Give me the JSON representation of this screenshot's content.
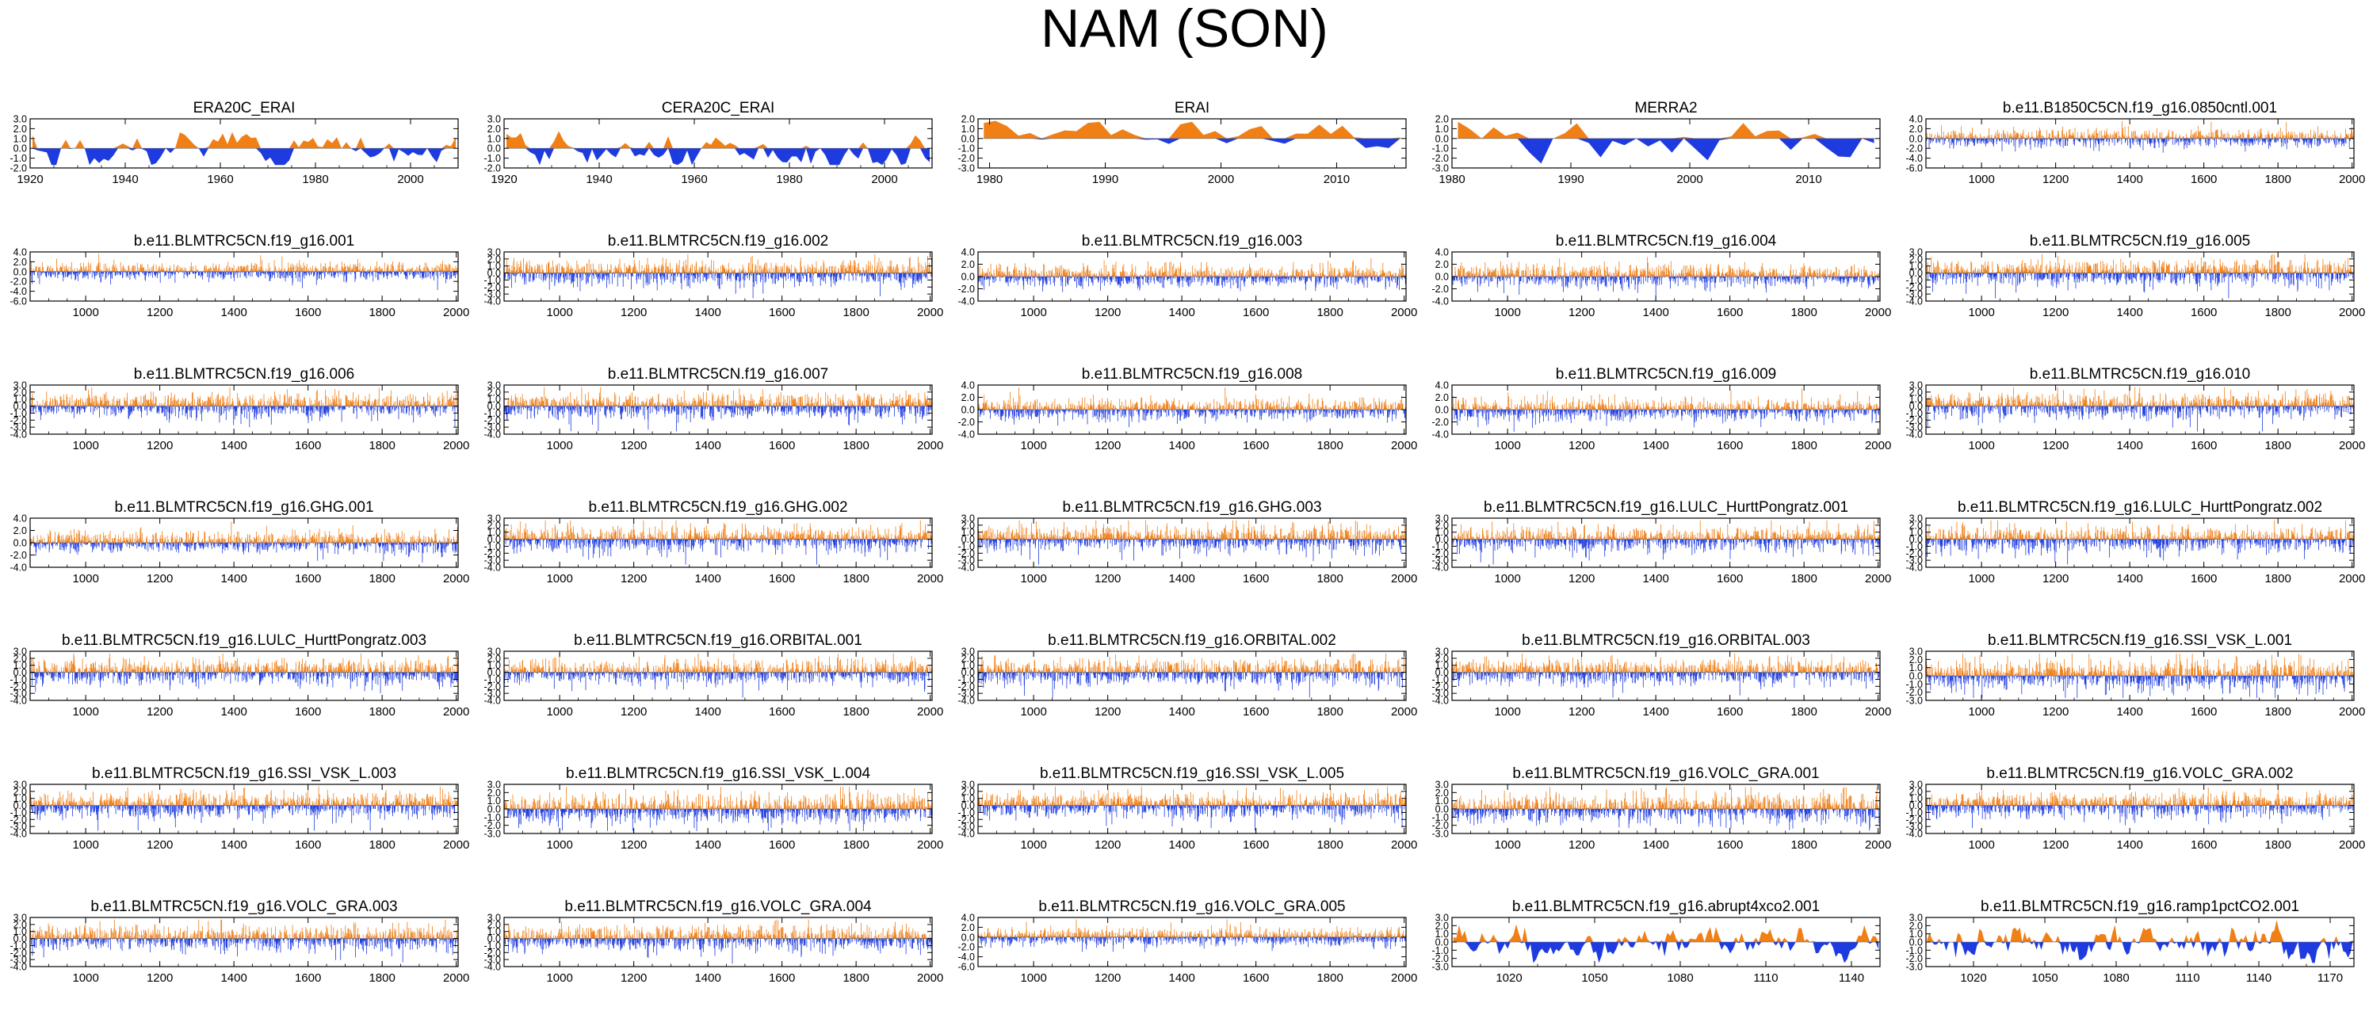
{
  "title": "NAM (SON)",
  "colors": {
    "positive": "#f07f16",
    "negative": "#1e3be0",
    "axis": "#000000"
  },
  "chart_data": [
    {
      "type": "area",
      "title": "ERA20C_ERAI",
      "xlim": [
        1920,
        2010
      ],
      "ylim": [
        -2.0,
        3.0
      ],
      "xticks": [
        "1920",
        "1940",
        "1960",
        "1980",
        "2000"
      ],
      "yticks": [
        "3.0",
        "2.0",
        "1.0",
        "0.0",
        "-1.0",
        "-2.0"
      ],
      "style": "smooth",
      "n": 90,
      "seed": 3
    },
    {
      "type": "area",
      "title": "CERA20C_ERAI",
      "xlim": [
        1920,
        2010
      ],
      "ylim": [
        -2.0,
        3.0
      ],
      "xticks": [
        "1920",
        "1940",
        "1960",
        "1980",
        "2000"
      ],
      "yticks": [
        "3.0",
        "2.0",
        "1.0",
        "0.0",
        "-1.0",
        "-2.0"
      ],
      "style": "smooth",
      "n": 90,
      "seed": 5
    },
    {
      "type": "area",
      "title": "ERAI",
      "xlim": [
        1979,
        2016
      ],
      "ylim": [
        -3.0,
        2.0
      ],
      "xticks": [
        "1980",
        "1990",
        "2000",
        "2010"
      ],
      "yticks": [
        "2.0",
        "1.0",
        "0.0",
        "-1.0",
        "-2.0",
        "-3.0"
      ],
      "style": "smooth",
      "n": 37,
      "seed": 7
    },
    {
      "type": "area",
      "title": "MERRA2",
      "xlim": [
        1980,
        2016
      ],
      "ylim": [
        -3.0,
        2.0
      ],
      "xticks": [
        "1980",
        "1990",
        "2000",
        "2010"
      ],
      "yticks": [
        "2.0",
        "1.0",
        "0.0",
        "-1.0",
        "-2.0",
        "-3.0"
      ],
      "style": "smooth",
      "n": 36,
      "seed": 9
    },
    {
      "type": "area",
      "title": "b.e11.B1850C5CN.f19_g16.0850cntl.001",
      "xlim": [
        850,
        2005
      ],
      "ylim": [
        -6.0,
        4.0
      ],
      "xticks": [
        "1000",
        "1200",
        "1400",
        "1600",
        "1800",
        "2000"
      ],
      "yticks": [
        "4.0",
        "2.0",
        "0.0",
        "-2.0",
        "-4.0",
        "-6.0"
      ],
      "style": "spiky",
      "n": 1156,
      "seed": 11
    },
    {
      "type": "area",
      "title": "b.e11.BLMTRC5CN.f19_g16.001",
      "xlim": [
        850,
        2005
      ],
      "ylim": [
        -6.0,
        4.0
      ],
      "xticks": [
        "1000",
        "1200",
        "1400",
        "1600",
        "1800",
        "2000"
      ],
      "yticks": [
        "4.0",
        "2.0",
        "0.0",
        "-2.0",
        "-4.0",
        "-6.0"
      ],
      "style": "spiky",
      "n": 1156,
      "seed": 13
    },
    {
      "type": "area",
      "title": "b.e11.BLMTRC5CN.f19_g16.002",
      "xlim": [
        850,
        2005
      ],
      "ylim": [
        -4.0,
        3.0
      ],
      "xticks": [
        "1000",
        "1200",
        "1400",
        "1600",
        "1800",
        "2000"
      ],
      "yticks": [
        "3.0",
        "2.0",
        "1.0",
        "0.0",
        "-1.0",
        "-2.0",
        "-3.0",
        "-4.0"
      ],
      "style": "spiky",
      "n": 1156,
      "seed": 15
    },
    {
      "type": "area",
      "title": "b.e11.BLMTRC5CN.f19_g16.003",
      "xlim": [
        850,
        2005
      ],
      "ylim": [
        -4.0,
        4.0
      ],
      "xticks": [
        "1000",
        "1200",
        "1400",
        "1600",
        "1800",
        "2000"
      ],
      "yticks": [
        "4.0",
        "2.0",
        "0.0",
        "-2.0",
        "-4.0"
      ],
      "style": "spiky",
      "n": 1156,
      "seed": 17
    },
    {
      "type": "area",
      "title": "b.e11.BLMTRC5CN.f19_g16.004",
      "xlim": [
        850,
        2005
      ],
      "ylim": [
        -4.0,
        4.0
      ],
      "xticks": [
        "1000",
        "1200",
        "1400",
        "1600",
        "1800",
        "2000"
      ],
      "yticks": [
        "4.0",
        "2.0",
        "0.0",
        "-2.0",
        "-4.0"
      ],
      "style": "spiky",
      "n": 1156,
      "seed": 19
    },
    {
      "type": "area",
      "title": "b.e11.BLMTRC5CN.f19_g16.005",
      "xlim": [
        850,
        2005
      ],
      "ylim": [
        -4.0,
        3.0
      ],
      "xticks": [
        "1000",
        "1200",
        "1400",
        "1600",
        "1800",
        "2000"
      ],
      "yticks": [
        "3.0",
        "2.0",
        "1.0",
        "0.0",
        "-1.0",
        "-2.0",
        "-3.0",
        "-4.0"
      ],
      "style": "spiky",
      "n": 1156,
      "seed": 21
    },
    {
      "type": "area",
      "title": "b.e11.BLMTRC5CN.f19_g16.006",
      "xlim": [
        850,
        2005
      ],
      "ylim": [
        -4.0,
        3.0
      ],
      "xticks": [
        "1000",
        "1200",
        "1400",
        "1600",
        "1800",
        "2000"
      ],
      "yticks": [
        "3.0",
        "2.0",
        "1.0",
        "0.0",
        "-1.0",
        "-2.0",
        "-3.0",
        "-4.0"
      ],
      "style": "spiky",
      "n": 1156,
      "seed": 23
    },
    {
      "type": "area",
      "title": "b.e11.BLMTRC5CN.f19_g16.007",
      "xlim": [
        850,
        2005
      ],
      "ylim": [
        -4.0,
        3.0
      ],
      "xticks": [
        "1000",
        "1200",
        "1400",
        "1600",
        "1800",
        "2000"
      ],
      "yticks": [
        "3.0",
        "2.0",
        "1.0",
        "0.0",
        "-1.0",
        "-2.0",
        "-3.0",
        "-4.0"
      ],
      "style": "spiky",
      "n": 1156,
      "seed": 25
    },
    {
      "type": "area",
      "title": "b.e11.BLMTRC5CN.f19_g16.008",
      "xlim": [
        850,
        2005
      ],
      "ylim": [
        -4.0,
        4.0
      ],
      "xticks": [
        "1000",
        "1200",
        "1400",
        "1600",
        "1800",
        "2000"
      ],
      "yticks": [
        "4.0",
        "2.0",
        "0.0",
        "-2.0",
        "-4.0"
      ],
      "style": "spiky",
      "n": 1156,
      "seed": 27
    },
    {
      "type": "area",
      "title": "b.e11.BLMTRC5CN.f19_g16.009",
      "xlim": [
        850,
        2005
      ],
      "ylim": [
        -4.0,
        4.0
      ],
      "xticks": [
        "1000",
        "1200",
        "1400",
        "1600",
        "1800",
        "2000"
      ],
      "yticks": [
        "4.0",
        "2.0",
        "0.0",
        "-2.0",
        "-4.0"
      ],
      "style": "spiky",
      "n": 1156,
      "seed": 29
    },
    {
      "type": "area",
      "title": "b.e11.BLMTRC5CN.f19_g16.010",
      "xlim": [
        850,
        2005
      ],
      "ylim": [
        -4.0,
        3.0
      ],
      "xticks": [
        "1000",
        "1200",
        "1400",
        "1600",
        "1800",
        "2000"
      ],
      "yticks": [
        "3.0",
        "2.0",
        "1.0",
        "0.0",
        "-1.0",
        "-2.0",
        "-3.0",
        "-4.0"
      ],
      "style": "spiky",
      "n": 1156,
      "seed": 31
    },
    {
      "type": "area",
      "title": "b.e11.BLMTRC5CN.f19_g16.GHG.001",
      "xlim": [
        850,
        2005
      ],
      "ylim": [
        -4.0,
        4.0
      ],
      "xticks": [
        "1000",
        "1200",
        "1400",
        "1600",
        "1800",
        "2000"
      ],
      "yticks": [
        "4.0",
        "2.0",
        "0.0",
        "-2.0",
        "-4.0"
      ],
      "style": "spiky",
      "n": 1156,
      "seed": 33
    },
    {
      "type": "area",
      "title": "b.e11.BLMTRC5CN.f19_g16.GHG.002",
      "xlim": [
        850,
        2005
      ],
      "ylim": [
        -4.0,
        3.0
      ],
      "xticks": [
        "1000",
        "1200",
        "1400",
        "1600",
        "1800",
        "2000"
      ],
      "yticks": [
        "3.0",
        "2.0",
        "1.0",
        "0.0",
        "-1.0",
        "-2.0",
        "-3.0",
        "-4.0"
      ],
      "style": "spiky",
      "n": 1156,
      "seed": 35
    },
    {
      "type": "area",
      "title": "b.e11.BLMTRC5CN.f19_g16.GHG.003",
      "xlim": [
        850,
        2005
      ],
      "ylim": [
        -4.0,
        3.0
      ],
      "xticks": [
        "1000",
        "1200",
        "1400",
        "1600",
        "1800",
        "2000"
      ],
      "yticks": [
        "3.0",
        "2.0",
        "1.0",
        "0.0",
        "-1.0",
        "-2.0",
        "-3.0",
        "-4.0"
      ],
      "style": "spiky",
      "n": 1156,
      "seed": 37
    },
    {
      "type": "area",
      "title": "b.e11.BLMTRC5CN.f19_g16.LULC_HurttPongratz.001",
      "xlim": [
        850,
        2005
      ],
      "ylim": [
        -4.0,
        3.0
      ],
      "xticks": [
        "1000",
        "1200",
        "1400",
        "1600",
        "1800",
        "2000"
      ],
      "yticks": [
        "3.0",
        "2.0",
        "1.0",
        "0.0",
        "-1.0",
        "-2.0",
        "-3.0",
        "-4.0"
      ],
      "style": "spiky",
      "n": 1156,
      "seed": 39
    },
    {
      "type": "area",
      "title": "b.e11.BLMTRC5CN.f19_g16.LULC_HurttPongratz.002",
      "xlim": [
        850,
        2005
      ],
      "ylim": [
        -4.0,
        3.0
      ],
      "xticks": [
        "1000",
        "1200",
        "1400",
        "1600",
        "1800",
        "2000"
      ],
      "yticks": [
        "3.0",
        "2.0",
        "1.0",
        "0.0",
        "-1.0",
        "-2.0",
        "-3.0",
        "-4.0"
      ],
      "style": "spiky",
      "n": 1156,
      "seed": 41
    },
    {
      "type": "area",
      "title": "b.e11.BLMTRC5CN.f19_g16.LULC_HurttPongratz.003",
      "xlim": [
        850,
        2005
      ],
      "ylim": [
        -4.0,
        3.0
      ],
      "xticks": [
        "1000",
        "1200",
        "1400",
        "1600",
        "1800",
        "2000"
      ],
      "yticks": [
        "3.0",
        "2.0",
        "1.0",
        "0.0",
        "-1.0",
        "-2.0",
        "-3.0",
        "-4.0"
      ],
      "style": "spiky",
      "n": 1156,
      "seed": 43
    },
    {
      "type": "area",
      "title": "b.e11.BLMTRC5CN.f19_g16.ORBITAL.001",
      "xlim": [
        850,
        2005
      ],
      "ylim": [
        -4.0,
        3.0
      ],
      "xticks": [
        "1000",
        "1200",
        "1400",
        "1600",
        "1800",
        "2000"
      ],
      "yticks": [
        "3.0",
        "2.0",
        "1.0",
        "0.0",
        "-1.0",
        "-2.0",
        "-3.0",
        "-4.0"
      ],
      "style": "spiky",
      "n": 1156,
      "seed": 45
    },
    {
      "type": "area",
      "title": "b.e11.BLMTRC5CN.f19_g16.ORBITAL.002",
      "xlim": [
        850,
        2005
      ],
      "ylim": [
        -4.0,
        3.0
      ],
      "xticks": [
        "1000",
        "1200",
        "1400",
        "1600",
        "1800",
        "2000"
      ],
      "yticks": [
        "3.0",
        "2.0",
        "1.0",
        "0.0",
        "-1.0",
        "-2.0",
        "-3.0",
        "-4.0"
      ],
      "style": "spiky",
      "n": 1156,
      "seed": 47
    },
    {
      "type": "area",
      "title": "b.e11.BLMTRC5CN.f19_g16.ORBITAL.003",
      "xlim": [
        850,
        2005
      ],
      "ylim": [
        -4.0,
        3.0
      ],
      "xticks": [
        "1000",
        "1200",
        "1400",
        "1600",
        "1800",
        "2000"
      ],
      "yticks": [
        "3.0",
        "2.0",
        "1.0",
        "0.0",
        "-1.0",
        "-2.0",
        "-3.0",
        "-4.0"
      ],
      "style": "spiky",
      "n": 1156,
      "seed": 49
    },
    {
      "type": "area",
      "title": "b.e11.BLMTRC5CN.f19_g16.SSI_VSK_L.001",
      "xlim": [
        850,
        2005
      ],
      "ylim": [
        -3.0,
        3.0
      ],
      "xticks": [
        "1000",
        "1200",
        "1400",
        "1600",
        "1800",
        "2000"
      ],
      "yticks": [
        "3.0",
        "2.0",
        "1.0",
        "0.0",
        "-1.0",
        "-2.0",
        "-3.0"
      ],
      "style": "spiky",
      "n": 1156,
      "seed": 51
    },
    {
      "type": "area",
      "title": "b.e11.BLMTRC5CN.f19_g16.SSI_VSK_L.003",
      "xlim": [
        850,
        2005
      ],
      "ylim": [
        -4.0,
        3.0
      ],
      "xticks": [
        "1000",
        "1200",
        "1400",
        "1600",
        "1800",
        "2000"
      ],
      "yticks": [
        "3.0",
        "2.0",
        "1.0",
        "0.0",
        "-1.0",
        "-2.0",
        "-3.0",
        "-4.0"
      ],
      "style": "spiky",
      "n": 1156,
      "seed": 53
    },
    {
      "type": "area",
      "title": "b.e11.BLMTRC5CN.f19_g16.SSI_VSK_L.004",
      "xlim": [
        850,
        2005
      ],
      "ylim": [
        -3.0,
        3.0
      ],
      "xticks": [
        "1000",
        "1200",
        "1400",
        "1600",
        "1800",
        "2000"
      ],
      "yticks": [
        "3.0",
        "2.0",
        "1.0",
        "0.0",
        "-1.0",
        "-2.0",
        "-3.0"
      ],
      "style": "spiky",
      "n": 1156,
      "seed": 55
    },
    {
      "type": "area",
      "title": "b.e11.BLMTRC5CN.f19_g16.SSI_VSK_L.005",
      "xlim": [
        850,
        2005
      ],
      "ylim": [
        -4.0,
        3.0
      ],
      "xticks": [
        "1000",
        "1200",
        "1400",
        "1600",
        "1800",
        "2000"
      ],
      "yticks": [
        "3.0",
        "2.0",
        "1.0",
        "0.0",
        "-1.0",
        "-2.0",
        "-3.0",
        "-4.0"
      ],
      "style": "spiky",
      "n": 1156,
      "seed": 57
    },
    {
      "type": "area",
      "title": "b.e11.BLMTRC5CN.f19_g16.VOLC_GRA.001",
      "xlim": [
        850,
        2005
      ],
      "ylim": [
        -3.0,
        3.0
      ],
      "xticks": [
        "1000",
        "1200",
        "1400",
        "1600",
        "1800",
        "2000"
      ],
      "yticks": [
        "3.0",
        "2.0",
        "1.0",
        "0.0",
        "-1.0",
        "-2.0",
        "-3.0"
      ],
      "style": "spiky",
      "n": 1156,
      "seed": 59
    },
    {
      "type": "area",
      "title": "b.e11.BLMTRC5CN.f19_g16.VOLC_GRA.002",
      "xlim": [
        850,
        2005
      ],
      "ylim": [
        -4.0,
        3.0
      ],
      "xticks": [
        "1000",
        "1200",
        "1400",
        "1600",
        "1800",
        "2000"
      ],
      "yticks": [
        "3.0",
        "2.0",
        "1.0",
        "0.0",
        "-1.0",
        "-2.0",
        "-3.0",
        "-4.0"
      ],
      "style": "spiky",
      "n": 1156,
      "seed": 61
    },
    {
      "type": "area",
      "title": "b.e11.BLMTRC5CN.f19_g16.VOLC_GRA.003",
      "xlim": [
        850,
        2005
      ],
      "ylim": [
        -4.0,
        3.0
      ],
      "xticks": [
        "1000",
        "1200",
        "1400",
        "1600",
        "1800",
        "2000"
      ],
      "yticks": [
        "3.0",
        "2.0",
        "1.0",
        "0.0",
        "-1.0",
        "-2.0",
        "-3.0",
        "-4.0"
      ],
      "style": "spiky",
      "n": 1156,
      "seed": 63
    },
    {
      "type": "area",
      "title": "b.e11.BLMTRC5CN.f19_g16.VOLC_GRA.004",
      "xlim": [
        850,
        2005
      ],
      "ylim": [
        -4.0,
        3.0
      ],
      "xticks": [
        "1000",
        "1200",
        "1400",
        "1600",
        "1800",
        "2000"
      ],
      "yticks": [
        "3.0",
        "2.0",
        "1.0",
        "0.0",
        "-1.0",
        "-2.0",
        "-3.0",
        "-4.0"
      ],
      "style": "spiky",
      "n": 1156,
      "seed": 65
    },
    {
      "type": "area",
      "title": "b.e11.BLMTRC5CN.f19_g16.VOLC_GRA.005",
      "xlim": [
        850,
        2005
      ],
      "ylim": [
        -6.0,
        4.0
      ],
      "xticks": [
        "1000",
        "1200",
        "1400",
        "1600",
        "1800",
        "2000"
      ],
      "yticks": [
        "4.0",
        "2.0",
        "0.0",
        "-2.0",
        "-4.0",
        "-6.0"
      ],
      "style": "spiky",
      "n": 1156,
      "seed": 67
    },
    {
      "type": "area",
      "title": "b.e11.BLMTRC5CN.f19_g16.abrupt4xco2.001",
      "xlim": [
        1000,
        1150
      ],
      "ylim": [
        -3.0,
        3.0
      ],
      "xticks": [
        "1020",
        "1050",
        "1080",
        "1110",
        "1140"
      ],
      "yticks": [
        "3.0",
        "2.0",
        "1.0",
        "0.0",
        "-1.0",
        "-2.0",
        "-3.0"
      ],
      "style": "smooth",
      "n": 150,
      "seed": 69
    },
    {
      "type": "area",
      "title": "b.e11.BLMTRC5CN.f19_g16.ramp1pctCO2.001",
      "xlim": [
        1000,
        1180
      ],
      "ylim": [
        -3.0,
        3.0
      ],
      "xticks": [
        "1020",
        "1050",
        "1080",
        "1110",
        "1140",
        "1170"
      ],
      "yticks": [
        "3.0",
        "2.0",
        "1.0",
        "0.0",
        "-1.0",
        "-2.0",
        "-3.0"
      ],
      "style": "smooth",
      "n": 180,
      "seed": 71
    }
  ]
}
